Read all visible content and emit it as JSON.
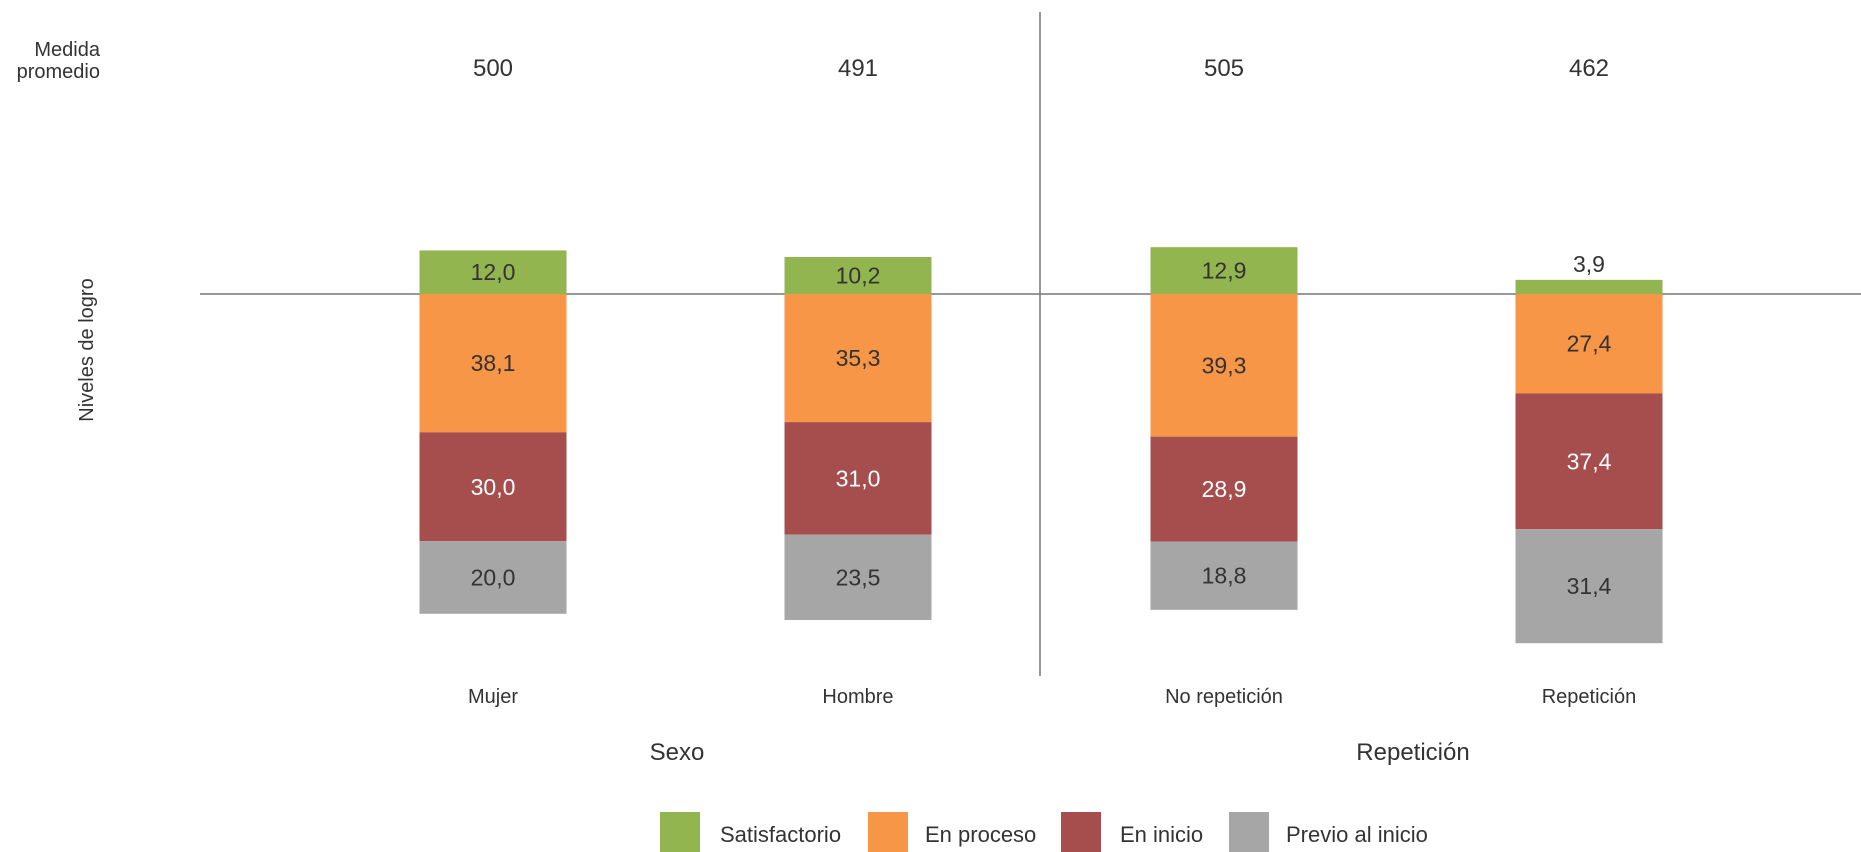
{
  "chart_data": {
    "type": "bar",
    "stacked": "diverging",
    "row_label": "Medida promedio",
    "ylabel": "Niveles de logro",
    "groups": [
      {
        "label": "Sexo",
        "categories": [
          "Mujer",
          "Hombre"
        ]
      },
      {
        "label": "Repetición",
        "categories": [
          "No repetición",
          "Repetición"
        ]
      }
    ],
    "categories": [
      "Mujer",
      "Hombre",
      "No repetición",
      "Repetición"
    ],
    "mean_scores": [
      "500",
      "491",
      "505",
      "462"
    ],
    "series": [
      {
        "name": "Satisfactorio",
        "color": "#92b550",
        "direction": "up",
        "values": [
          12.0,
          10.2,
          12.9,
          3.9
        ],
        "labels": [
          "12,0",
          "10,2",
          "12,9",
          "3,9"
        ]
      },
      {
        "name": "En proceso",
        "color": "#f79646",
        "direction": "down",
        "values": [
          38.1,
          35.3,
          39.3,
          27.4
        ],
        "labels": [
          "38,1",
          "35,3",
          "39,3",
          "27,4"
        ]
      },
      {
        "name": "En inicio",
        "color": "#a64d4d",
        "direction": "down",
        "values": [
          30.0,
          31.0,
          28.9,
          37.4
        ],
        "labels": [
          "30,0",
          "31,0",
          "28,9",
          "37,4"
        ]
      },
      {
        "name": "Previo al inicio",
        "color": "#a6a6a6",
        "direction": "down",
        "values": [
          20.0,
          23.5,
          18.8,
          31.4
        ],
        "labels": [
          "20,0",
          "23,5",
          "18,8",
          "31,4"
        ]
      }
    ],
    "legend_position": "bottom",
    "grid": false
  }
}
